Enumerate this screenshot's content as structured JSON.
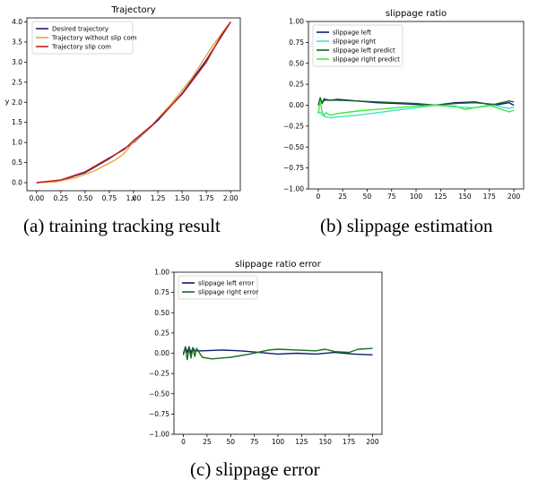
{
  "charts": [
    {
      "caption": "(a) training tracking result",
      "chart_data": {
        "type": "line",
        "title": "Trajectory",
        "xlabel": "x",
        "ylabel": "y",
        "xlim": [
          -0.1,
          2.1
        ],
        "ylim": [
          -0.2,
          4.1
        ],
        "xticks": [
          "0.00",
          "0.25",
          "0.50",
          "0.75",
          "1.00",
          "1.25",
          "1.50",
          "1.75",
          "2.00"
        ],
        "xtick_values": [
          0,
          0.25,
          0.5,
          0.75,
          1.0,
          1.25,
          1.5,
          1.75,
          2.0
        ],
        "yticks": [
          "0.0",
          "0.5",
          "1.0",
          "1.5",
          "2.0",
          "2.5",
          "3.0",
          "3.5",
          "4.0"
        ],
        "ytick_values": [
          0,
          0.5,
          1.0,
          1.5,
          2.0,
          2.5,
          3.0,
          3.5,
          4.0
        ],
        "grid": false,
        "legend_position": "top-left",
        "series": [
          {
            "name": "Desired trajectory",
            "color": "#1f1f7a",
            "x": [
              0,
              0.25,
              0.5,
              0.75,
              1.0,
              1.25,
              1.5,
              1.75,
              2.0
            ],
            "y": [
              0,
              0.06,
              0.25,
              0.6,
              1.0,
              1.55,
              2.22,
              3.05,
              4.0
            ]
          },
          {
            "name": "Trajectory without slip com",
            "color": "#e8a33a",
            "x": [
              0,
              0.2,
              0.4,
              0.6,
              0.8,
              0.9,
              1.0,
              1.2,
              1.4,
              1.6,
              1.8,
              1.95,
              2.0
            ],
            "y": [
              0,
              0.02,
              0.12,
              0.3,
              0.55,
              0.72,
              1.02,
              1.45,
              2.0,
              2.6,
              3.35,
              3.85,
              4.0
            ]
          },
          {
            "name": "Trajectory slip com",
            "color": "#c41e1e",
            "x": [
              0,
              0.25,
              0.5,
              0.75,
              0.9,
              1.0,
              1.2,
              1.5,
              1.75,
              1.9,
              2.0
            ],
            "y": [
              0,
              0.07,
              0.27,
              0.62,
              0.82,
              1.05,
              1.45,
              2.2,
              3.0,
              3.65,
              4.0
            ]
          }
        ]
      }
    },
    {
      "caption": "(b) slippage estimation",
      "chart_data": {
        "type": "line",
        "title": "slippage ratio",
        "xlim": [
          -10,
          210
        ],
        "ylim": [
          -1.0,
          1.0
        ],
        "xticks": [
          "0",
          "25",
          "50",
          "75",
          "100",
          "125",
          "150",
          "175",
          "200"
        ],
        "xtick_values": [
          0,
          25,
          50,
          75,
          100,
          125,
          150,
          175,
          200
        ],
        "yticks": [
          "1.00",
          "0.75",
          "0.50",
          "0.25",
          "0.00",
          "−0.25",
          "−0.50",
          "−0.75",
          "−1.00"
        ],
        "ytick_values": [
          1.0,
          0.75,
          0.5,
          0.25,
          0,
          -0.25,
          -0.5,
          -0.75,
          -1.0
        ],
        "grid": false,
        "legend_position": "top-left",
        "series": [
          {
            "name": "slippage left",
            "color": "#0b1f6e",
            "x": [
              0,
              2,
              4,
              8,
              12,
              20,
              40,
              60,
              80,
              100,
              120,
              140,
              160,
              180,
              195,
              200
            ],
            "y": [
              0.0,
              0.06,
              0.04,
              0.07,
              0.06,
              0.07,
              0.05,
              0.03,
              0.02,
              0.01,
              0.0,
              0.03,
              0.04,
              0.0,
              0.03,
              0.0
            ]
          },
          {
            "name": "slippage right",
            "color": "#39e5c8",
            "x": [
              0,
              2,
              4,
              8,
              12,
              20,
              40,
              60,
              80,
              100,
              120,
              140,
              160,
              180,
              195,
              200
            ],
            "y": [
              -0.1,
              -0.08,
              -0.12,
              -0.14,
              -0.15,
              -0.14,
              -0.12,
              -0.09,
              -0.06,
              -0.03,
              0.0,
              -0.02,
              -0.03,
              0.0,
              -0.04,
              -0.02
            ]
          },
          {
            "name": "slippage left predict",
            "color": "#1d5e2a",
            "x": [
              0,
              2,
              4,
              6,
              8,
              12,
              20,
              40,
              60,
              80,
              100,
              120,
              140,
              160,
              180,
              195,
              200
            ],
            "y": [
              0.0,
              0.09,
              0.02,
              0.08,
              0.06,
              0.06,
              0.06,
              0.05,
              0.04,
              0.03,
              0.02,
              0.0,
              0.02,
              0.03,
              0.01,
              0.05,
              0.04
            ]
          },
          {
            "name": "slippage right predict",
            "color": "#3dea3d",
            "x": [
              0,
              2,
              4,
              6,
              8,
              12,
              20,
              40,
              60,
              80,
              100,
              120,
              140,
              150,
              160,
              175,
              185,
              195,
              200
            ],
            "y": [
              -0.1,
              0.05,
              -0.08,
              -0.12,
              -0.09,
              -0.12,
              -0.1,
              -0.07,
              -0.05,
              -0.03,
              -0.01,
              0.0,
              -0.01,
              -0.05,
              -0.03,
              0.0,
              -0.04,
              -0.08,
              -0.06
            ]
          }
        ]
      }
    },
    {
      "caption": "(c) slippage error",
      "chart_data": {
        "type": "line",
        "title": "slippage ratio error",
        "xlim": [
          -10,
          210
        ],
        "ylim": [
          -1.0,
          1.0
        ],
        "xticks": [
          "0",
          "25",
          "50",
          "75",
          "100",
          "125",
          "150",
          "175",
          "200"
        ],
        "xtick_values": [
          0,
          25,
          50,
          75,
          100,
          125,
          150,
          175,
          200
        ],
        "yticks": [
          "1.00",
          "0.75",
          "0.50",
          "0.25",
          "0.00",
          "−0.25",
          "−0.50",
          "−0.75",
          "−1.00"
        ],
        "ytick_values": [
          1.0,
          0.75,
          0.5,
          0.25,
          0,
          -0.25,
          -0.5,
          -0.75,
          -1.0
        ],
        "grid": false,
        "legend_position": "top-left",
        "series": [
          {
            "name": "slippage left error",
            "color": "#0b1f6e",
            "x": [
              0,
              2,
              4,
              6,
              8,
              10,
              12,
              20,
              40,
              60,
              80,
              100,
              120,
              140,
              160,
              180,
              200
            ],
            "y": [
              -0.02,
              0.08,
              0.01,
              0.08,
              0.0,
              0.07,
              0.03,
              0.03,
              0.04,
              0.03,
              0.01,
              -0.01,
              0.0,
              -0.01,
              0.01,
              -0.01,
              -0.02
            ]
          },
          {
            "name": "slippage right error",
            "color": "#1a6b1a",
            "x": [
              0,
              2,
              4,
              6,
              8,
              10,
              12,
              14,
              20,
              30,
              50,
              70,
              90,
              100,
              120,
              140,
              150,
              160,
              175,
              185,
              200
            ],
            "y": [
              0.0,
              0.07,
              -0.08,
              0.07,
              -0.06,
              0.07,
              -0.04,
              0.06,
              -0.05,
              -0.07,
              -0.05,
              -0.01,
              0.04,
              0.05,
              0.04,
              0.03,
              0.05,
              0.02,
              0.01,
              0.05,
              0.06
            ]
          }
        ]
      }
    }
  ]
}
